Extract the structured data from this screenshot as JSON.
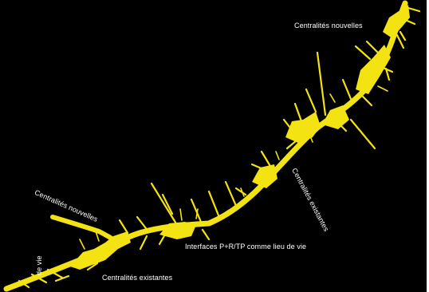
{
  "colors": {
    "background": "#000000",
    "urban_axis": "#f4e312",
    "label_text": "#ffffff",
    "frame": "#ffffff"
  },
  "labels": {
    "centralites_nouvelles_top": "Centralités nouvelles",
    "centralites_nouvelles_left": "Centralités nouvelles",
    "centralites_existantes_right": "Centralités existantes",
    "interfaces": "Interfaces P+R/TP comme lieu de vie",
    "centralites_existantes_bottom": "Centralités existantes",
    "partial_left_edge": "de vie"
  }
}
